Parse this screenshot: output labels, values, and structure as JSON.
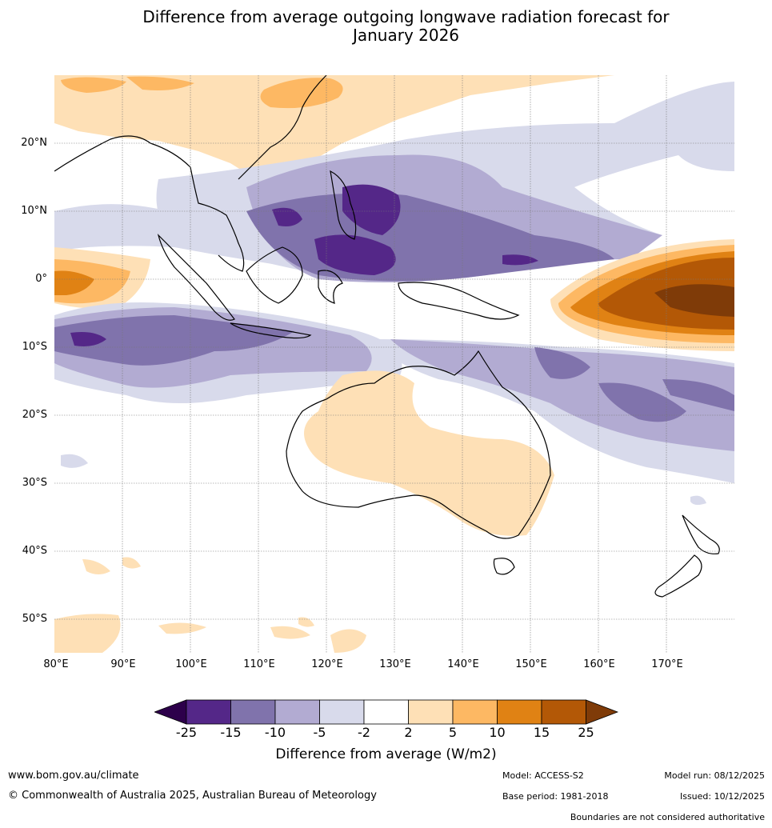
{
  "header": {
    "title_line1": "Difference from average outgoing longwave radiation forecast for",
    "title_line2": "January 2026"
  },
  "map": {
    "lat_labels": [
      "20°N",
      "10°N",
      "0°",
      "10°S",
      "20°S",
      "30°S",
      "40°S",
      "50°S"
    ],
    "lon_labels": [
      "80°E",
      "90°E",
      "100°E",
      "110°E",
      "120°E",
      "130°E",
      "140°E",
      "150°E",
      "160°E",
      "170°E"
    ],
    "extent": {
      "lon": [
        80,
        180
      ],
      "lat": [
        -55,
        30
      ]
    }
  },
  "colorbar": {
    "ticks": [
      "-25",
      "-15",
      "-10",
      "-5",
      "-2",
      "2",
      "5",
      "10",
      "15",
      "25"
    ],
    "colors": [
      "#2d004b",
      "#542788",
      "#8073ac",
      "#b2abd2",
      "#d8daeb",
      "#ffffff",
      "#fee0b6",
      "#fdb863",
      "#e08214",
      "#b35806",
      "#7f3b08"
    ],
    "title": "Difference from average (W/m2)"
  },
  "footer": {
    "url": "www.bom.gov.au/climate",
    "copyright": "© Commonwealth of Australia 2025, Australian Bureau of Meteorology",
    "model": "Model: ACCESS-S2",
    "base_period": "Base period: 1981-2018",
    "model_run": "Model run: 08/12/2025",
    "issued": "Issued: 10/12/2025",
    "disclaimer": "Boundaries are not considered authoritative"
  }
}
